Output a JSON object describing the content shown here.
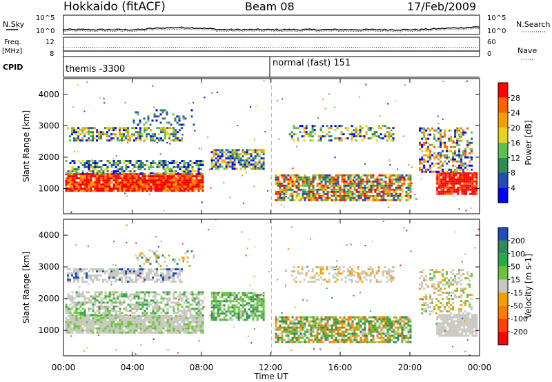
{
  "header": {
    "title": "Hokkaido (fitACF)",
    "beam": "Beam 08",
    "date": "17/Feb/2009"
  },
  "side_labels": {
    "nsky": "N.Sky",
    "nsearch": "N.Search",
    "freq": "Freq.",
    "freq_unit": "[MHz]",
    "nave": "Nave",
    "cpid": "CPID"
  },
  "noise_panel": {
    "left_ticks": [
      "10^5",
      "10^0"
    ],
    "right_ticks": [
      "10^5",
      "10^0"
    ]
  },
  "freq_panel": {
    "left_ticks": [
      "12",
      "8"
    ],
    "right_ticks": [
      "60",
      "0"
    ]
  },
  "cpid_panel": {
    "segments": [
      "themis -3300",
      "normal (fast) 151"
    ]
  },
  "chart_data": [
    {
      "type": "heatmap",
      "name": "power",
      "ylabel": "Slant Range [km]",
      "xlabel": "Time UT",
      "x_ticks": [
        "00:00",
        "04:00",
        "08:00",
        "12:00",
        "16:00",
        "20:00",
        "00:00"
      ],
      "y_ticks": [
        "1000",
        "2000",
        "3000",
        "4000"
      ],
      "ylim": [
        200,
        4500
      ],
      "colorbar_label": "Power [dB]",
      "colorbar_ticks": [
        "4",
        "8",
        "12",
        "16",
        "20",
        "24",
        "28"
      ],
      "colors": [
        "#0000ff",
        "#1f4fb4",
        "#2e8b57",
        "#5fbf4f",
        "#e8d21a",
        "#f5a000",
        "#ff6000",
        "#ff0000"
      ]
    },
    {
      "type": "heatmap",
      "name": "velocity",
      "ylabel": "Slant Range [km]",
      "xlabel": "Time UT",
      "x_ticks": [
        "00:00",
        "04:00",
        "08:00",
        "12:00",
        "16:00",
        "20:00",
        "00:00"
      ],
      "y_ticks": [
        "1000",
        "2000",
        "3000",
        "4000"
      ],
      "ylim": [
        200,
        4500
      ],
      "colorbar_label": "Velocity [m s-1]",
      "colorbar_ticks": [
        "200",
        "100",
        "50",
        "15",
        "-15",
        "-50",
        "-100",
        "-200"
      ],
      "colors": [
        "#1f4fb4",
        "#2e8b57",
        "#2aa84a",
        "#6cc23a",
        "#c8c8c0",
        "#f2a000",
        "#ff7a00",
        "#ff4000",
        "#ff0000"
      ]
    }
  ],
  "x_axis_label": "Time UT"
}
